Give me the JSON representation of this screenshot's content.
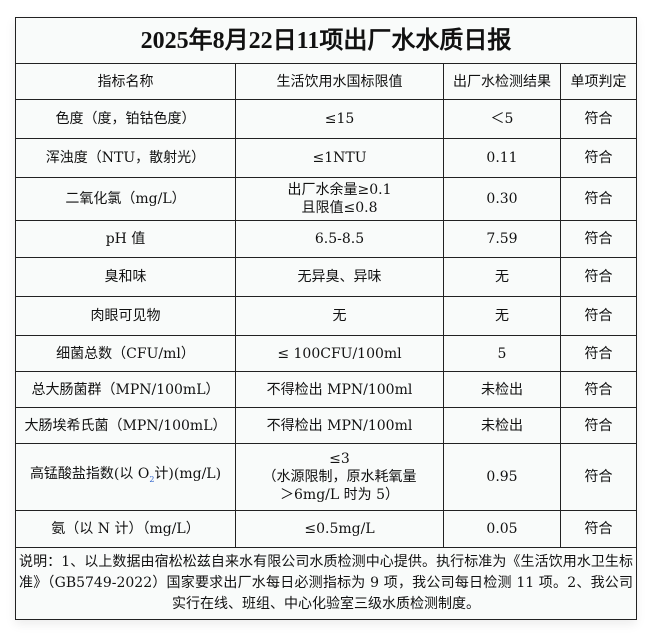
{
  "title": "2025年8月22日11项出厂水水质日报",
  "headers": [
    "指标名称",
    "生活饮用水国标限值",
    "出厂水检测结果",
    "单项判定"
  ],
  "rows": [
    {
      "name": "色度（度，铂钴色度）",
      "limit": "≤15",
      "result": "＜5",
      "verdict": "符合"
    },
    {
      "name": "浑浊度（NTU，散射光）",
      "limit": "≤1NTU",
      "result": "0.11",
      "verdict": "符合"
    },
    {
      "name": "二氧化氯（mg/L）",
      "limit": "出厂水余量≥0.1",
      "limit2": "且限值≤0.8",
      "result": "0.30",
      "verdict": "符合"
    },
    {
      "name": "pH 值",
      "limit": "6.5-8.5",
      "result": "7.59",
      "verdict": "符合"
    },
    {
      "name": "臭和味",
      "limit": "无异臭、异味",
      "result": "无",
      "verdict": "符合"
    },
    {
      "name": "肉眼可见物",
      "limit": "无",
      "result": "无",
      "verdict": "符合"
    },
    {
      "name": "细菌总数（CFU/ml）",
      "limit": "≤ 100CFU/100ml",
      "result": "5",
      "verdict": "符合"
    },
    {
      "name": "总大肠菌群（MPN/100mL）",
      "limit": "不得检出 MPN/100ml",
      "result": "未检出",
      "verdict": "符合"
    },
    {
      "name": "大肠埃希氏菌（MPN/100mL）",
      "limit": "不得检出 MPN/100ml",
      "result": "未检出",
      "verdict": "符合"
    },
    {
      "name_a": "高锰酸盐指数(以 O",
      "name_sub": "2",
      "name_b": "计)(mg/L)",
      "limit": "≤3",
      "limit2": "（水源限制，原水耗氧量",
      "limit3": "＞6mg/L 时为 5）",
      "result": "0.95",
      "verdict": "符合"
    },
    {
      "name": "氨（以 N 计）（mg/L）",
      "limit": "≤0.5mg/L",
      "result": "0.05",
      "verdict": "符合"
    }
  ],
  "note": "说明：1、以上数据由宿松松兹自来水有限公司水质检测中心提供。执行标准为《生活饮用水卫生标准》（GB5749-2022）国家要求出厂水每日必测指标为 9 项，我公司每日检测 11 项。2、我公司实行在线、班组、中心化验室三级水质检测制度。"
}
